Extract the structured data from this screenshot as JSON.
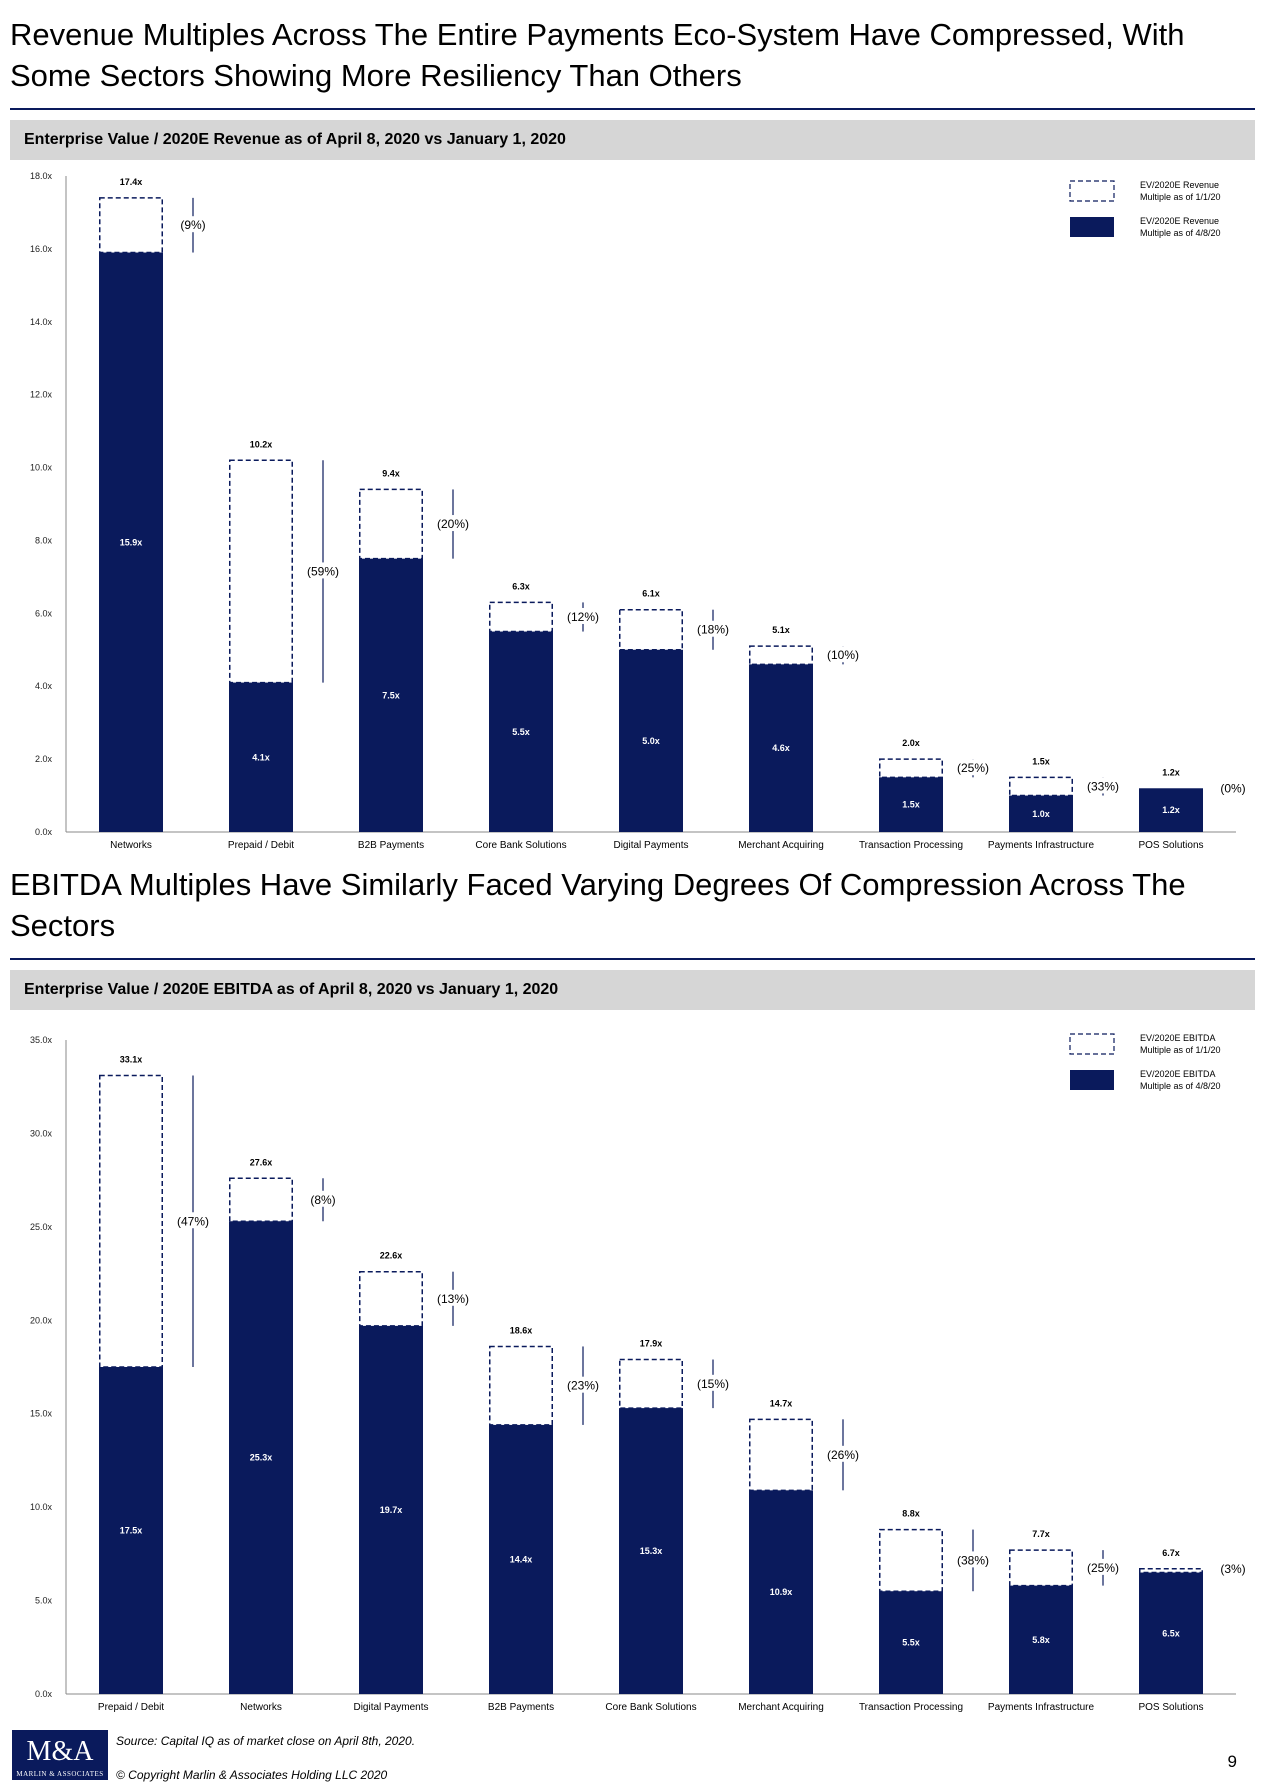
{
  "page": {
    "heading_revenue": "Revenue Multiples Across The Entire Payments Eco-System Have Compressed, With Some Sectors Showing More Resiliency Than Others",
    "heading_ebitda": "EBITDA Multiples Have Similarly Faced Varying Degrees Of Compression Across The Sectors",
    "source": "Source: Capital IQ as of market close on April 8th, 2020.",
    "copyright": "© Copyright Marlin & Associates Holding LLC 2020",
    "page_number": "9",
    "logo_text": "M&A",
    "logo_subtext": "MARLIN & ASSOCIATES"
  },
  "colors": {
    "navy": "#0a1a5c",
    "band_gray": "#d6d6d6"
  },
  "chart_data": [
    {
      "type": "bar",
      "title": "Enterprise Value / 2020E Revenue as of April 8, 2020 vs January 1, 2020",
      "categories": [
        "Networks",
        "Prepaid / Debit",
        "B2B Payments",
        "Core Bank Solutions",
        "Digital Payments",
        "Merchant Acquiring",
        "Transaction Processing",
        "Payments Infrastructure",
        "POS Solutions"
      ],
      "series": [
        {
          "name": "EV/2020E Revenue Multiple as of 1/1/20",
          "values": [
            17.4,
            10.2,
            9.4,
            6.3,
            6.1,
            5.1,
            2.0,
            1.5,
            1.2
          ]
        },
        {
          "name": "EV/2020E Revenue Multiple as of 4/8/20",
          "values": [
            15.9,
            4.1,
            7.5,
            5.5,
            5.0,
            4.6,
            1.5,
            1.0,
            1.2
          ]
        }
      ],
      "value_labels_jan": [
        "17.4x",
        "10.2x",
        "9.4x",
        "6.3x",
        "6.1x",
        "5.1x",
        "2.0x",
        "1.5x",
        "1.2x"
      ],
      "value_labels_apr": [
        "15.9x",
        "4.1x",
        "7.5x",
        "5.5x",
        "5.0x",
        "4.6x",
        "1.5x",
        "1.0x",
        "1.2x"
      ],
      "changes": [
        "(9%)",
        "(59%)",
        "(20%)",
        "(12%)",
        "(18%)",
        "(10%)",
        "(25%)",
        "(33%)",
        "(0%)"
      ],
      "legend": [
        "EV/2020E Revenue Multiple as of 1/1/20",
        "EV/2020E Revenue Multiple as of 4/8/20"
      ],
      "legend_placement": "top-right",
      "yticks": [
        "0.0x",
        "2.0x",
        "4.0x",
        "6.0x",
        "8.0x",
        "10.0x",
        "12.0x",
        "14.0x",
        "16.0x",
        "18.0x"
      ],
      "ylim": [
        0,
        18
      ],
      "grid": false
    },
    {
      "type": "bar",
      "title": "Enterprise Value / 2020E EBITDA as of April 8, 2020 vs January 1, 2020",
      "categories": [
        "Prepaid / Debit",
        "Networks",
        "Digital Payments",
        "B2B Payments",
        "Core Bank Solutions",
        "Merchant Acquiring",
        "Transaction Processing",
        "Payments Infrastructure",
        "POS Solutions"
      ],
      "series": [
        {
          "name": "EV/2020E EBITDA Multiple as of 1/1/20",
          "values": [
            33.1,
            27.6,
            22.6,
            18.6,
            17.9,
            14.7,
            8.8,
            7.7,
            6.7
          ]
        },
        {
          "name": "EV/2020E EBITDA Multiple as of 4/8/20",
          "values": [
            17.5,
            25.3,
            19.7,
            14.4,
            15.3,
            10.9,
            5.5,
            5.8,
            6.5
          ]
        }
      ],
      "value_labels_jan": [
        "33.1x",
        "27.6x",
        "22.6x",
        "18.6x",
        "17.9x",
        "14.7x",
        "8.8x",
        "7.7x",
        "6.7x"
      ],
      "value_labels_apr": [
        "17.5x",
        "25.3x",
        "19.7x",
        "14.4x",
        "15.3x",
        "10.9x",
        "5.5x",
        "5.8x",
        "6.5x"
      ],
      "changes": [
        "(47%)",
        "(8%)",
        "(13%)",
        "(23%)",
        "(15%)",
        "(26%)",
        "(38%)",
        "(25%)",
        "(3%)"
      ],
      "legend": [
        "EV/2020E EBITDA Multiple as of 1/1/20",
        "EV/2020E EBITDA Multiple as of 4/8/20"
      ],
      "legend_placement": "top-right",
      "yticks": [
        "0.0x",
        "5.0x",
        "10.0x",
        "15.0x",
        "20.0x",
        "25.0x",
        "30.0x",
        "35.0x"
      ],
      "ylim": [
        0,
        35
      ],
      "grid": false
    }
  ]
}
